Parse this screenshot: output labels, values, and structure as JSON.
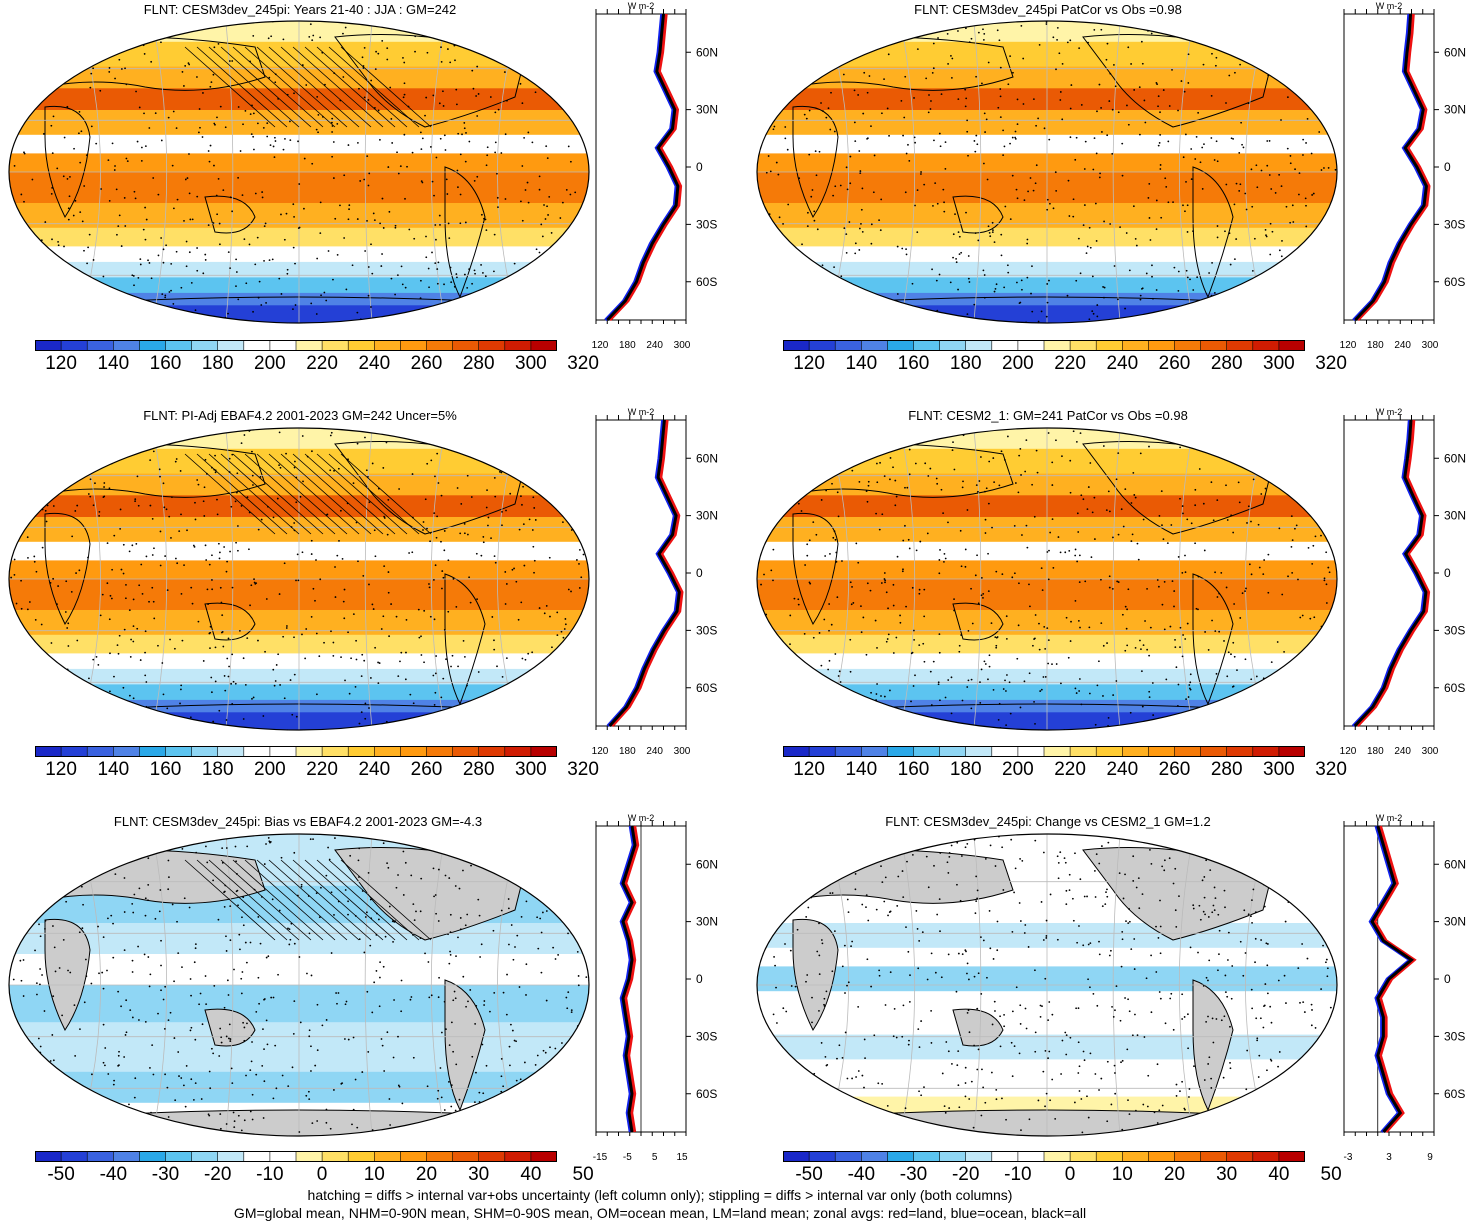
{
  "panels": [
    {
      "title": "FLNT: CESM3dev_245pi: Years 21-40 : JJA : GM=242",
      "kind": "abs",
      "zonal_xticks": [
        "120",
        "180",
        "240",
        "300"
      ],
      "zonal_yticks": [
        "60N",
        "30N",
        "0",
        "30S",
        "60S"
      ],
      "zonal_units": "W m-2"
    },
    {
      "title": "FLNT: CESM3dev_245pi PatCor vs Obs =0.98",
      "kind": "abs",
      "zonal_xticks": [
        "120",
        "180",
        "240",
        "300"
      ],
      "zonal_yticks": [
        "60N",
        "30N",
        "0",
        "30S",
        "60S"
      ],
      "zonal_units": "W m-2"
    },
    {
      "title": "FLNT: PI-Adj EBAF4.2 2001-2023 GM=242 Uncer=5%",
      "kind": "abs",
      "zonal_xticks": [
        "120",
        "180",
        "240",
        "300"
      ],
      "zonal_yticks": [
        "60N",
        "30N",
        "0",
        "30S",
        "60S"
      ],
      "zonal_units": "W m-2"
    },
    {
      "title": "FLNT: CESM2_1: GM=241 PatCor vs Obs =0.98",
      "kind": "abs",
      "zonal_xticks": [
        "120",
        "180",
        "240",
        "300"
      ],
      "zonal_yticks": [
        "60N",
        "30N",
        "0",
        "30S",
        "60S"
      ],
      "zonal_units": "W m-2"
    },
    {
      "title": "FLNT: CESM3dev_245pi: Bias vs EBAF4.2 2001-2023 GM=-4.3",
      "kind": "diff",
      "zonal_xticks": [
        "-15",
        "-5",
        "5",
        "15"
      ],
      "zonal_yticks": [
        "60N",
        "30N",
        "0",
        "30S",
        "60S"
      ],
      "zonal_units": "W m-2"
    },
    {
      "title": "FLNT: CESM3dev_245pi: Change vs CESM2_1 GM=1.2",
      "kind": "change",
      "zonal_xticks": [
        "-3",
        "3",
        "9"
      ],
      "zonal_yticks": [
        "60N",
        "30N",
        "0",
        "30S",
        "60S"
      ],
      "zonal_units": "W m-2"
    }
  ],
  "colorbars": {
    "abs_labels": [
      "120",
      "140",
      "160",
      "180",
      "200",
      "220",
      "240",
      "260",
      "280",
      "300",
      "320"
    ],
    "diff_labels": [
      "-50",
      "-40",
      "-30",
      "-20",
      "-10",
      "0",
      "10",
      "20",
      "30",
      "40",
      "50"
    ],
    "colors": [
      "#1a28c8",
      "#2440d6",
      "#3a62e0",
      "#4f82e6",
      "#2aa8e8",
      "#5cc4f0",
      "#8fd6f4",
      "#c2e8f8",
      "#ffffff",
      "#ffffff",
      "#fff4a8",
      "#ffe066",
      "#ffcc33",
      "#ffb020",
      "#ff9a10",
      "#f57a08",
      "#ea5a04",
      "#df3a02",
      "#d01c02",
      "#b80000"
    ]
  },
  "footer": {
    "line1": "hatching = diffs > internal var+obs uncertainty (left column only); stippling = diffs > internal var only (both columns)",
    "line2": "GM=global mean, NHM=0-90N mean, SHM=0-90S mean, OM=ocean mean, LM=land mean; zonal avgs: red=land, blue=ocean, black=all"
  },
  "chart_data": [
    {
      "type": "heatmap",
      "title": "FLNT: CESM3dev_245pi: Years 21-40 : JJA : GM=242",
      "colorbar_range": [
        120,
        320
      ],
      "zonal_mean_series": [
        {
          "name": "land",
          "color": "red"
        },
        {
          "name": "ocean",
          "color": "blue"
        },
        {
          "name": "all",
          "color": "black"
        }
      ],
      "zonal_lat": [
        80,
        70,
        60,
        50,
        40,
        30,
        20,
        10,
        0,
        -10,
        -20,
        -30,
        -40,
        -50,
        -60,
        -70,
        -80
      ],
      "zonal_all": [
        250,
        246,
        242,
        235,
        255,
        275,
        270,
        238,
        262,
        282,
        278,
        250,
        225,
        205,
        190,
        165,
        125
      ]
    },
    {
      "type": "heatmap",
      "title": "FLNT: CESM3dev_245pi PatCor vs Obs =0.98",
      "colorbar_range": [
        120,
        320
      ],
      "zonal_lat": [
        80,
        70,
        60,
        50,
        40,
        30,
        20,
        10,
        0,
        -10,
        -20,
        -30,
        -40,
        -50,
        -60,
        -70,
        -80
      ],
      "zonal_all": [
        248,
        245,
        240,
        236,
        256,
        276,
        268,
        236,
        262,
        283,
        278,
        249,
        224,
        204,
        190,
        165,
        125
      ]
    },
    {
      "type": "heatmap",
      "title": "FLNT: PI-Adj EBAF4.2 2001-2023 GM=242 Uncer=5%",
      "colorbar_range": [
        120,
        320
      ],
      "zonal_lat": [
        80,
        70,
        60,
        50,
        40,
        30,
        20,
        10,
        0,
        -10,
        -20,
        -30,
        -40,
        -50,
        -60,
        -70,
        -80
      ],
      "zonal_all": [
        252,
        248,
        244,
        238,
        258,
        278,
        270,
        240,
        264,
        285,
        280,
        252,
        228,
        208,
        192,
        168,
        130
      ]
    },
    {
      "type": "heatmap",
      "title": "FLNT: CESM2_1: GM=241 PatCor vs Obs =0.98",
      "colorbar_range": [
        120,
        320
      ],
      "zonal_lat": [
        80,
        70,
        60,
        50,
        40,
        30,
        20,
        10,
        0,
        -10,
        -20,
        -30,
        -40,
        -50,
        -60,
        -70,
        -80
      ],
      "zonal_all": [
        249,
        246,
        241,
        235,
        254,
        274,
        268,
        237,
        261,
        282,
        277,
        249,
        224,
        204,
        189,
        164,
        124
      ]
    },
    {
      "type": "heatmap",
      "title": "FLNT: CESM3dev_245pi: Bias vs EBAF4.2 2001-2023 GM=-4.3",
      "colorbar_range": [
        -50,
        50
      ],
      "zonal_lat": [
        80,
        70,
        60,
        50,
        40,
        30,
        20,
        10,
        0,
        -10,
        -20,
        -30,
        -40,
        -50,
        -60,
        -70,
        -80
      ],
      "zonal_all": [
        -3,
        -2,
        -4,
        -6,
        -3,
        -6,
        -4,
        -3,
        -4,
        -6,
        -5,
        -4,
        -5,
        -4,
        -3,
        -4,
        -3
      ]
    },
    {
      "type": "heatmap",
      "title": "FLNT: CESM3dev_245pi: Change vs CESM2_1 GM=1.2",
      "colorbar_range": [
        -50,
        50
      ],
      "zonal_lat": [
        80,
        70,
        60,
        50,
        40,
        30,
        20,
        10,
        0,
        -10,
        -20,
        -30,
        -40,
        -50,
        -60,
        -70,
        -80
      ],
      "zonal_all": [
        0,
        1,
        2,
        3,
        1,
        -1,
        1,
        6,
        2,
        0,
        1,
        1,
        0,
        1,
        2,
        4,
        1
      ]
    }
  ]
}
